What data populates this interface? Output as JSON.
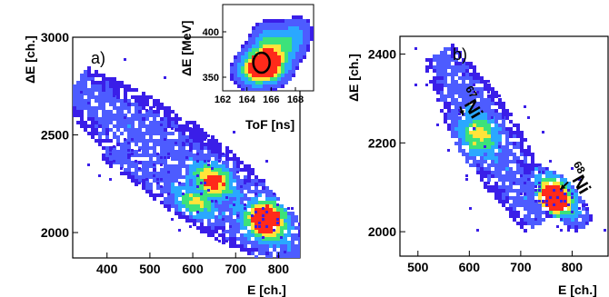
{
  "colors": {
    "cold": "#3a1ee8",
    "mid": "#4d5cff",
    "cyan": "#2aa8ff",
    "green": "#3ce27a",
    "yellow": "#ffe43a",
    "hot": "#ff2a1a"
  },
  "chart_data": [
    {
      "type": "heatmap",
      "panel_label": "a)",
      "xlabel": "E [ch.]",
      "ylabel": "ΔE [ch.]",
      "xlim": [
        320,
        850
      ],
      "ylim": [
        1870,
        3000
      ],
      "xticks": [
        "400",
        "500",
        "600",
        "700",
        "800"
      ],
      "yticks": [
        "2000",
        "2500",
        "3000"
      ],
      "bands": [
        {
          "from": [
            330,
            2750
          ],
          "to": [
            840,
            1900
          ],
          "width": 95,
          "peak": [
            770,
            2080
          ],
          "peak_level": 0.95
        },
        {
          "from": [
            440,
            2560
          ],
          "to": [
            790,
            2100
          ],
          "width": 55,
          "peak": [
            640,
            2260
          ],
          "peak_level": 0.7
        },
        {
          "from": [
            400,
            2420
          ],
          "to": [
            780,
            1960
          ],
          "width": 40,
          "peak": [
            600,
            2160
          ],
          "peak_level": 0.5
        }
      ]
    },
    {
      "type": "heatmap",
      "panel_label": "",
      "inset": true,
      "xlabel": "ToF  [ns]",
      "ylabel": "ΔE [MeV]",
      "xlim": [
        162,
        169.5
      ],
      "ylim": [
        335,
        430
      ],
      "xticks": [
        "162",
        "164",
        "166",
        "168"
      ],
      "yticks": [
        "350",
        "400"
      ],
      "blobs": [
        {
          "x": 165.2,
          "y": 365,
          "level": 1.0,
          "r": 1.0
        },
        {
          "x": 164.0,
          "y": 358,
          "level": 0.45,
          "r": 1.0
        },
        {
          "x": 165.6,
          "y": 395,
          "level": 0.45,
          "r": 1.0
        },
        {
          "x": 167.3,
          "y": 385,
          "level": 0.45,
          "r": 1.0
        },
        {
          "x": 168.2,
          "y": 405,
          "level": 0.3,
          "r": 0.9
        },
        {
          "x": 166.5,
          "y": 360,
          "level": 0.3,
          "r": 0.9
        }
      ],
      "gate": {
        "x": 165.2,
        "y": 366
      }
    },
    {
      "type": "heatmap",
      "panel_label": "b)",
      "xlabel": "E [ch.]",
      "ylabel": "ΔE [ch.]",
      "xlim": [
        465,
        870
      ],
      "ylim": [
        1945,
        2440
      ],
      "xticks": [
        "500",
        "600",
        "700",
        "800"
      ],
      "yticks": [
        "2000",
        "2200",
        "2400"
      ],
      "bands": [
        {
          "from": [
            540,
            2400
          ],
          "to": [
            730,
            2030
          ],
          "width": 70,
          "peak": [
            610,
            2220
          ],
          "peak_level": 0.55
        },
        {
          "from": [
            725,
            2140
          ],
          "to": [
            820,
            2020
          ],
          "width": 40,
          "peak": [
            760,
            2080
          ],
          "peak_level": 1.0
        }
      ],
      "annotations": [
        {
          "mass": "67",
          "element": "Ni",
          "x": 600,
          "y": 2290,
          "arrow_to": [
            588,
            2262
          ]
        },
        {
          "mass": "68",
          "element": "Ni",
          "x": 810,
          "y": 2120,
          "arrow_to": [
            777,
            2095
          ]
        }
      ]
    }
  ]
}
